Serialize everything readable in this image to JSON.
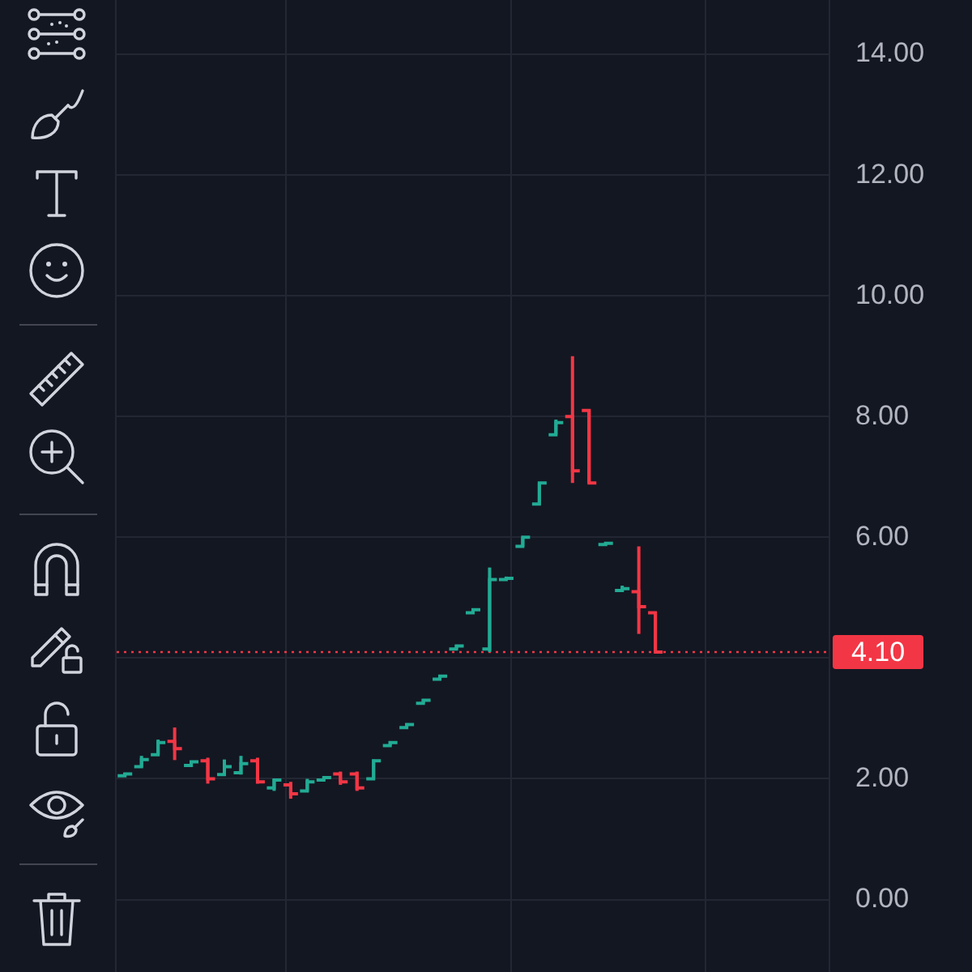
{
  "chart_data": {
    "type": "candlestick",
    "categories": [
      null,
      null,
      null,
      null,
      null,
      null,
      null,
      null,
      null,
      null,
      null,
      null,
      null,
      null,
      null,
      null,
      null,
      null,
      null,
      null,
      null,
      null,
      null,
      null,
      null,
      null,
      null,
      null,
      null,
      null,
      null,
      null,
      null,
      null,
      null,
      null,
      null,
      null,
      null,
      null,
      null,
      null,
      null
    ],
    "ohlc": [
      [
        2.05,
        2.1,
        2.05,
        2.08
      ],
      [
        2.2,
        2.38,
        2.2,
        2.32
      ],
      [
        2.4,
        2.65,
        2.4,
        2.6
      ],
      [
        2.62,
        2.85,
        2.31,
        2.5
      ],
      [
        2.22,
        2.3,
        2.2,
        2.28
      ],
      [
        2.3,
        2.35,
        1.92,
        2.0
      ],
      [
        2.07,
        2.32,
        2.07,
        2.2
      ],
      [
        2.1,
        2.38,
        2.07,
        2.25
      ],
      [
        2.3,
        2.35,
        1.92,
        1.95
      ],
      [
        1.85,
        2.0,
        1.8,
        1.98
      ],
      [
        1.9,
        1.95,
        1.67,
        1.75
      ],
      [
        1.8,
        2.0,
        1.8,
        1.95
      ],
      [
        1.98,
        2.02,
        1.98,
        2.02
      ],
      [
        2.08,
        2.12,
        1.9,
        1.95
      ],
      [
        2.08,
        2.12,
        1.8,
        1.85
      ],
      [
        2.0,
        2.32,
        2.0,
        2.3
      ],
      [
        2.55,
        2.62,
        2.55,
        2.6
      ],
      [
        2.85,
        2.92,
        2.85,
        2.9
      ],
      [
        3.25,
        3.32,
        3.25,
        3.3
      ],
      [
        3.65,
        3.72,
        3.65,
        3.7
      ],
      [
        4.15,
        4.22,
        4.15,
        4.2
      ],
      [
        4.75,
        4.82,
        4.75,
        4.8
      ],
      [
        4.15,
        5.5,
        4.1,
        5.3
      ],
      [
        5.3,
        5.35,
        5.3,
        5.32
      ],
      [
        5.85,
        6.0,
        5.85,
        6.0
      ],
      [
        6.55,
        6.9,
        6.55,
        6.9
      ],
      [
        7.7,
        7.95,
        7.7,
        7.9
      ],
      [
        8.0,
        9.0,
        6.9,
        7.1
      ],
      [
        8.1,
        8.12,
        6.9,
        6.9
      ],
      [
        5.88,
        5.92,
        5.88,
        5.9
      ],
      [
        5.12,
        5.2,
        5.1,
        5.15
      ],
      [
        5.1,
        5.85,
        4.4,
        4.85
      ],
      [
        4.75,
        4.75,
        4.1,
        4.1
      ],
      null,
      null,
      null,
      null,
      null,
      null,
      null,
      null,
      null,
      null
    ],
    "colors": [
      "#22ab94",
      "#22ab94",
      "#22ab94",
      "#f23645",
      "#22ab94",
      "#f23645",
      "#22ab94",
      "#22ab94",
      "#f23645",
      "#22ab94",
      "#f23645",
      "#22ab94",
      "#22ab94",
      "#f23645",
      "#f23645",
      "#22ab94",
      "#22ab94",
      "#22ab94",
      "#22ab94",
      "#22ab94",
      "#22ab94",
      "#22ab94",
      "#22ab94",
      "#22ab94",
      "#22ab94",
      "#22ab94",
      "#22ab94",
      "#f23645",
      "#f23645",
      "#22ab94",
      "#22ab94",
      "#f23645",
      "#f23645",
      null,
      null,
      null,
      null,
      null,
      null,
      null,
      null,
      null,
      null
    ],
    "ylim": [
      -1.2,
      14.9
    ],
    "yticks": [
      {
        "value": 0,
        "label": "0.00"
      },
      {
        "value": 2,
        "label": "2.00"
      },
      {
        "value": 4,
        "label": null
      },
      {
        "value": 6,
        "label": "6.00"
      },
      {
        "value": 8,
        "label": "8.00"
      },
      {
        "value": 10,
        "label": "10.00"
      },
      {
        "value": 12,
        "label": "12.00"
      },
      {
        "value": 14,
        "label": "14.00"
      }
    ],
    "tick_labels": "y",
    "grid": true,
    "ref_lines": [
      {
        "axis": "y",
        "value": 4.1,
        "label": "4.10",
        "color": "#f23645",
        "line_style": "dotted"
      }
    ]
  }
}
